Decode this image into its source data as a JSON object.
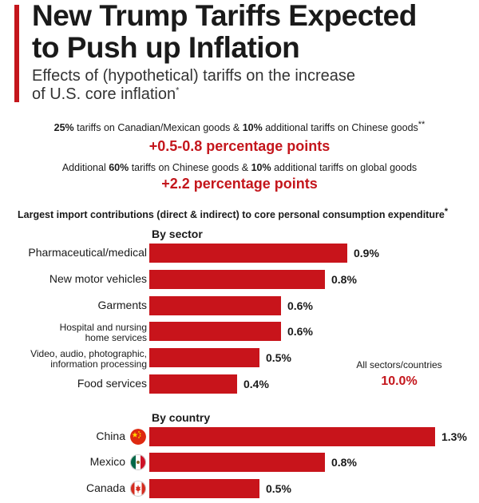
{
  "header": {
    "title_line1": "New Trump Tariffs Expected",
    "title_line2": "to Push up Inflation",
    "subtitle_line1": "Effects of (hypothetical) tariffs on the increase",
    "subtitle_line2": "of U.S. core inflation",
    "subtitle_mark": "*"
  },
  "scenarios": [
    {
      "pct1": "25%",
      "text1": " tariffs on Canadian/Mexican goods & ",
      "pct2": "10%",
      "text2": " additional tariffs on Chinese goods",
      "mark": "**",
      "value": "+0.5-0.8 percentage points"
    },
    {
      "text0": "Additional ",
      "pct1": "60%",
      "text1": " tariffs on Chinese goods & ",
      "pct2": "10%",
      "text2": " additional tariffs on global goods",
      "value": "+2.2 percentage points"
    }
  ],
  "section_heading": "Largest import contributions (direct & indirect) to core personal consumption expenditure",
  "section_mark": "*",
  "colors": {
    "accent": "#c4161c",
    "bar": "#c8141b"
  },
  "chart_data": [
    {
      "type": "bar",
      "orientation": "horizontal",
      "title": "By sector",
      "categories": [
        "Pharmaceutical/medical",
        "New motor vehicles",
        "Garments",
        "Hospital and nursing home services",
        "Video, audio, photographic, information processing",
        "Food services"
      ],
      "category_lines": [
        [
          "Pharmaceutical/medical"
        ],
        [
          "New motor vehicles"
        ],
        [
          "Garments"
        ],
        [
          "Hospital and nursing",
          "home services"
        ],
        [
          "Video, audio, photographic,",
          "information processing"
        ],
        [
          "Food services"
        ]
      ],
      "values": [
        0.9,
        0.8,
        0.6,
        0.6,
        0.5,
        0.4
      ],
      "value_labels": [
        "0.9%",
        "0.8%",
        "0.6%",
        "0.6%",
        "0.5%",
        "0.4%"
      ],
      "unit": "%",
      "annotation": {
        "label": "All sectors/countries",
        "value": "10.0%"
      }
    },
    {
      "type": "bar",
      "orientation": "horizontal",
      "title": "By country",
      "categories": [
        "China",
        "Mexico",
        "Canada"
      ],
      "flags": [
        "china-flag-icon",
        "mexico-flag-icon",
        "canada-flag-icon"
      ],
      "values": [
        1.3,
        0.8,
        0.5
      ],
      "value_labels": [
        "1.3%",
        "0.8%",
        "0.5%"
      ],
      "unit": "%"
    }
  ]
}
